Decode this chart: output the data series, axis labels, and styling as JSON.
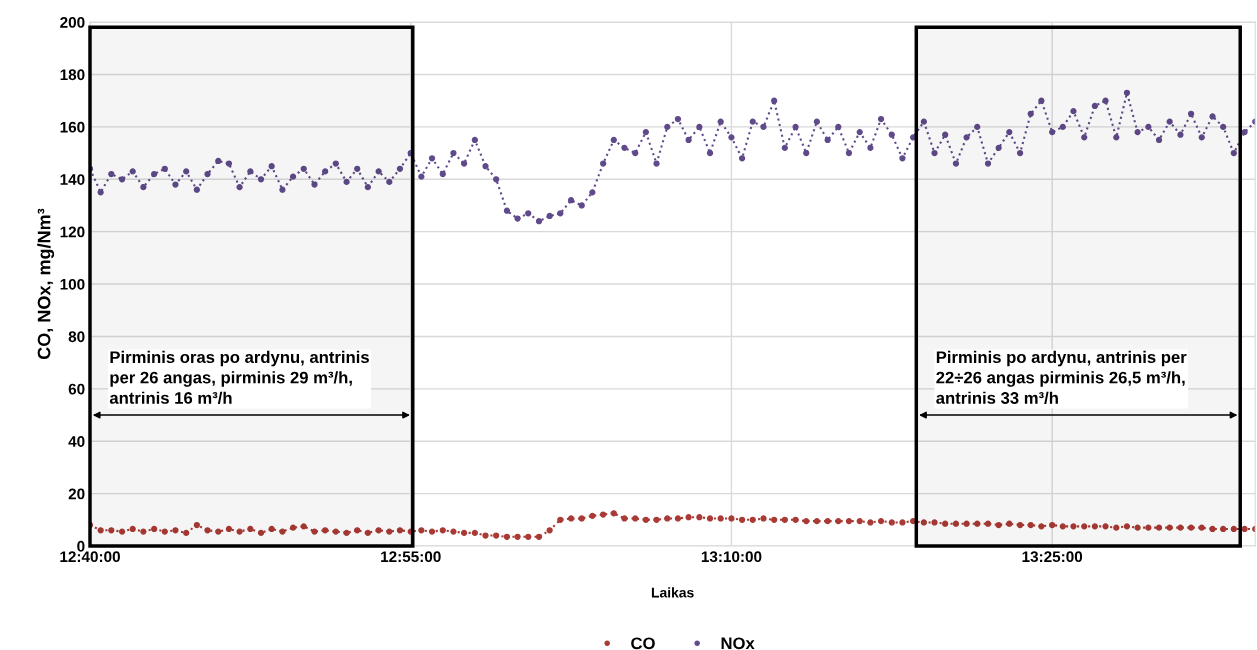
{
  "chart_data": {
    "type": "line",
    "xlabel": "Laikas",
    "ylabel": "CO, NOx, mg/Nm³",
    "x": [
      12.6667,
      12.675,
      12.6833,
      12.6917,
      12.7,
      12.7083,
      12.7167,
      12.725,
      12.7333,
      12.7417,
      12.75,
      12.7583,
      12.7667,
      12.775,
      12.7833,
      12.7917,
      12.8,
      12.8083,
      12.8167,
      12.825,
      12.8333,
      12.8417,
      12.85,
      12.8583,
      12.8667,
      12.875,
      12.8833,
      12.8917,
      12.9,
      12.9083,
      12.9167,
      12.925,
      12.9333,
      12.9417,
      12.95,
      12.9583,
      12.9667,
      12.975,
      12.9833,
      12.9917,
      13.0,
      13.0083,
      13.0167,
      13.025,
      13.0333,
      13.0417,
      13.05,
      13.0583,
      13.0667,
      13.075,
      13.0833,
      13.0917,
      13.1,
      13.1083,
      13.1167,
      13.125,
      13.1333,
      13.1417,
      13.15,
      13.1583,
      13.1667,
      13.175,
      13.1833,
      13.1917,
      13.2,
      13.2083,
      13.2167,
      13.225,
      13.2333,
      13.2417,
      13.25,
      13.2583,
      13.2667,
      13.275,
      13.2833,
      13.2917,
      13.3,
      13.3083,
      13.3167,
      13.325,
      13.3333,
      13.3417,
      13.35,
      13.3583,
      13.3667,
      13.375,
      13.3833,
      13.3917,
      13.4,
      13.4083,
      13.4167,
      13.425,
      13.4333,
      13.4417,
      13.45,
      13.4583,
      13.4667,
      13.475,
      13.4833,
      13.4917,
      13.5,
      13.5083,
      13.5167,
      13.525,
      13.5333,
      13.5417,
      13.55,
      13.5583,
      13.5667,
      13.575
    ],
    "series": [
      {
        "name": "CO",
        "color": "#a93a35",
        "values": [
          8,
          6,
          6,
          5.5,
          6.5,
          5.5,
          6.5,
          5.5,
          6,
          5,
          8,
          6,
          5.5,
          6.5,
          5.5,
          6.5,
          5,
          6.5,
          5.5,
          7,
          7.5,
          5.5,
          6,
          5.5,
          5,
          6,
          5,
          6,
          5.5,
          6,
          5.5,
          6,
          5.5,
          6,
          5.5,
          5,
          5,
          4,
          4,
          3.5,
          3.5,
          3.5,
          3.5,
          6,
          10,
          10.5,
          10.5,
          11.5,
          12,
          12.5,
          10.5,
          10.5,
          10,
          10,
          10.5,
          10.5,
          11,
          11,
          10.5,
          10.5,
          10.5,
          10,
          10,
          10.5,
          10,
          10,
          10,
          9.5,
          9.5,
          9.5,
          9.5,
          9.5,
          9.5,
          9,
          9.5,
          9,
          9,
          9.5,
          9,
          9,
          8.5,
          8.5,
          8.5,
          8.5,
          8.5,
          8,
          8.5,
          8,
          8,
          7.5,
          8,
          7.5,
          7.5,
          7.5,
          7.5,
          7.5,
          7,
          7.5,
          7,
          7,
          7,
          7,
          7,
          7,
          7,
          6.5,
          6.5,
          6.5,
          6.5,
          6.5
        ]
      },
      {
        "name": "NOx",
        "color": "#604a8b",
        "values": [
          144,
          135,
          142,
          140,
          143,
          137,
          142,
          144,
          138,
          143,
          136,
          142,
          147,
          146,
          137,
          143,
          140,
          145,
          136,
          141,
          144,
          138,
          143,
          146,
          139,
          144,
          137,
          143,
          139,
          144,
          150,
          141,
          148,
          142,
          150,
          146,
          155,
          145,
          140,
          128,
          125,
          127,
          124,
          126,
          127,
          132,
          130,
          135,
          146,
          155,
          152,
          150,
          158,
          146,
          160,
          163,
          155,
          160,
          150,
          162,
          156,
          148,
          162,
          160,
          170,
          152,
          160,
          150,
          162,
          155,
          160,
          150,
          158,
          152,
          163,
          157,
          148,
          156,
          162,
          150,
          157,
          146,
          156,
          160,
          146,
          152,
          158,
          150,
          165,
          170,
          158,
          160,
          166,
          156,
          168,
          170,
          156,
          173,
          158,
          160,
          155,
          162,
          157,
          165,
          156,
          164,
          160,
          150,
          158,
          162
        ]
      }
    ],
    "xlim": [
      12.6667,
      13.575
    ],
    "xticks": [
      {
        "value": 12.6667,
        "label": "12:40:00"
      },
      {
        "value": 12.9167,
        "label": "12:55:00"
      },
      {
        "value": 13.1667,
        "label": "13:10:00"
      },
      {
        "value": 13.4167,
        "label": "13:25:00"
      }
    ],
    "ylim": [
      0,
      200
    ],
    "yticks": [
      0,
      20,
      40,
      60,
      80,
      100,
      120,
      140,
      160,
      180,
      200
    ],
    "bands": [
      {
        "axis": "x",
        "from": 12.6667,
        "to": 12.9183,
        "label": "Pirminis oras po ardynu, antrinis\nper 26 angas, pirminis 29 m³/h,\nantrinis 16 m³/h",
        "color": "#000000"
      },
      {
        "axis": "x",
        "from": 13.3108,
        "to": 13.5633,
        "label": "Pirminis po ardynu, antrinis per\n22÷26 angas pirminis 26,5 m³/h,\nantrinis 33 m³/h",
        "color": "#000000"
      }
    ],
    "grid": true,
    "legend": "bottom",
    "marker": "circle",
    "line_style": "dotted"
  }
}
